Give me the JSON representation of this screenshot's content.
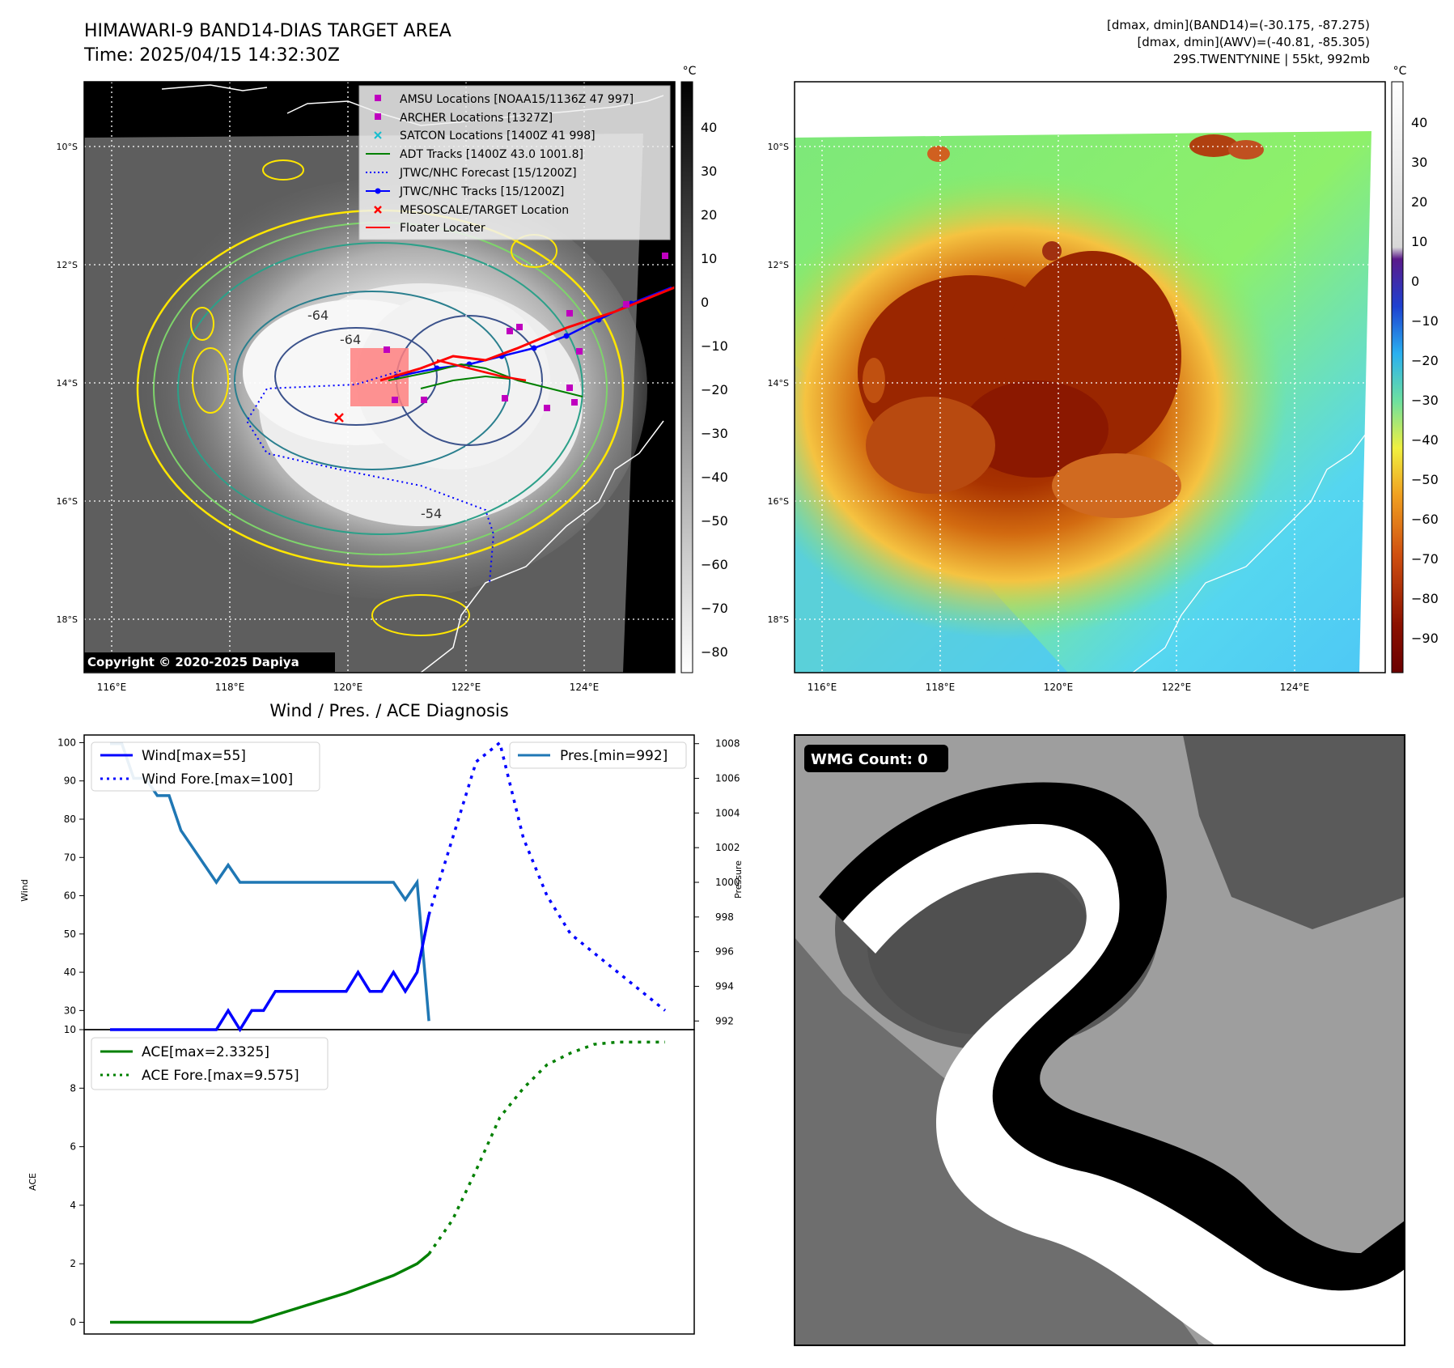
{
  "header": {
    "title": "HIMAWARI-9 BAND14-DIAS TARGET AREA",
    "time": "Time: 2025/04/15 14:32:30Z",
    "info_line1": "[dmax, dmin](BAND14)=(-30.175, -87.275)",
    "info_line2": "[dmax, dmin](AWV)=(-40.81, -85.305)",
    "info_line3": "29S.TWENTYNINE | 55kt, 992mb"
  },
  "map": {
    "lat_labels": [
      "10°S",
      "12°S",
      "14°S",
      "16°S",
      "18°S"
    ],
    "lon_labels": [
      "116°E",
      "118°E",
      "120°E",
      "122°E",
      "124°E"
    ],
    "copyright": "Copyright © 2020-2025 Dapiya",
    "colorbar_unit": "°C",
    "gray_ticks": [
      "40",
      "30",
      "20",
      "10",
      "0",
      "−10",
      "−20",
      "−30",
      "−40",
      "−50",
      "−60",
      "−70",
      "−80"
    ],
    "color_ticks": [
      "40",
      "30",
      "20",
      "10",
      "0",
      "−10",
      "−20",
      "−30",
      "−40",
      "−50",
      "−60",
      "−70",
      "−80",
      "−90"
    ],
    "legend": [
      {
        "label": "AMSU Locations [NOAA15/1136Z 47 997]",
        "marker": "square",
        "color": "#bf00bf"
      },
      {
        "label": "ARCHER Locations [1327Z]",
        "marker": "square",
        "color": "#bf00bf"
      },
      {
        "label": "SATCON Locations [1400Z 41 998]",
        "marker": "x",
        "color": "#17becf"
      },
      {
        "label": "ADT Tracks [1400Z 43.0 1001.8]",
        "marker": "line",
        "color": "#008000"
      },
      {
        "label": "JTWC/NHC Forecast [15/1200Z]",
        "marker": "dotted",
        "color": "#0000ff"
      },
      {
        "label": "JTWC/NHC Tracks [15/1200Z]",
        "marker": "line-dot",
        "color": "#0000ff"
      },
      {
        "label": "MESOSCALE/TARGET Location",
        "marker": "x",
        "color": "#ff0000"
      },
      {
        "label": "Floater Locater",
        "marker": "line",
        "color": "#ff0000"
      }
    ],
    "contour_labels": [
      "-64",
      "-64",
      "-54"
    ]
  },
  "diag": {
    "title": "Wind / Pres. / ACE Diagnosis",
    "wind_label": "Wind",
    "pres_label": "Pressure",
    "ace_label": "ACE",
    "wind_ticks": [
      "100",
      "90",
      "80",
      "70",
      "60",
      "50",
      "40",
      "30"
    ],
    "pres_ticks": [
      "1008",
      "1006",
      "1004",
      "1002",
      "1000",
      "998",
      "996",
      "994",
      "992"
    ],
    "ace_ticks": [
      "10",
      "8",
      "6",
      "4",
      "2",
      "0"
    ],
    "legend_wind": "Wind[max=55]",
    "legend_wind_fore": "Wind Fore.[max=100]",
    "legend_pres": "Pres.[min=992]",
    "legend_ace": "ACE[max=2.3325]",
    "legend_ace_fore": "ACE Fore.[max=9.575]"
  },
  "wmg": {
    "label": "WMG Count: 0"
  },
  "chart_data": [
    {
      "type": "line",
      "title": "Wind / Pres. / ACE Diagnosis",
      "ylabel": "Wind",
      "ylim": [
        25,
        102
      ],
      "x": [
        0,
        1,
        2,
        3,
        4,
        5,
        6,
        7,
        8,
        9,
        10,
        11,
        12,
        13,
        14,
        15,
        16,
        17,
        18,
        19,
        20,
        21,
        22,
        23,
        24,
        25,
        26,
        27,
        28,
        29,
        30,
        31,
        32,
        33,
        34,
        35,
        36,
        37,
        38,
        39,
        40,
        41,
        42,
        43,
        44,
        45,
        46,
        47
      ],
      "series": [
        {
          "name": "Wind[max=55]",
          "color": "#0000ff",
          "style": "solid",
          "x": [
            0,
            1,
            2,
            3,
            4,
            5,
            6,
            7,
            8,
            9,
            10,
            11,
            12,
            13,
            14,
            15,
            16,
            17,
            18,
            19,
            20,
            21,
            22,
            23,
            24,
            25,
            26,
            27
          ],
          "values": [
            25,
            25,
            25,
            25,
            25,
            25,
            25,
            25,
            25,
            25,
            30,
            25,
            30,
            30,
            35,
            35,
            35,
            35,
            35,
            35,
            35,
            40,
            35,
            35,
            40,
            35,
            40,
            55
          ]
        },
        {
          "name": "Wind Fore.[max=100]",
          "color": "#0000ff",
          "style": "dotted",
          "x": [
            27,
            29,
            31,
            33,
            35,
            37,
            39,
            41,
            43,
            45,
            47
          ],
          "values": [
            55,
            75,
            95,
            100,
            75,
            60,
            50,
            45,
            40,
            35,
            30
          ]
        }
      ]
    },
    {
      "type": "line",
      "ylabel": "Pressure",
      "ylim": [
        991.5,
        1008.5
      ],
      "series": [
        {
          "name": "Pres.[min=992]",
          "color": "#1f77b4",
          "style": "solid",
          "x": [
            0,
            1,
            2,
            3,
            4,
            5,
            6,
            7,
            8,
            9,
            10,
            11,
            12,
            13,
            14,
            15,
            16,
            17,
            18,
            19,
            20,
            21,
            22,
            23,
            24,
            25,
            26,
            27
          ],
          "values": [
            1008,
            1008,
            1006,
            1006,
            1005,
            1005,
            1003,
            1002,
            1001,
            1000,
            1001,
            1000,
            1000,
            1000,
            1000,
            1000,
            1000,
            1000,
            1000,
            1000,
            1000,
            1000,
            1000,
            1000,
            1000,
            999,
            1000,
            992
          ]
        }
      ]
    },
    {
      "type": "line",
      "ylabel": "ACE",
      "ylim": [
        -0.4,
        10
      ],
      "series": [
        {
          "name": "ACE[max=2.3325]",
          "color": "#008000",
          "style": "solid",
          "x": [
            0,
            2,
            4,
            6,
            8,
            10,
            12,
            14,
            16,
            18,
            20,
            22,
            24,
            26,
            27
          ],
          "values": [
            0,
            0,
            0,
            0,
            0,
            0,
            0,
            0.25,
            0.5,
            0.75,
            1.0,
            1.3,
            1.6,
            2.0,
            2.3325
          ]
        },
        {
          "name": "ACE Fore.[max=9.575]",
          "color": "#008000",
          "style": "dotted",
          "x": [
            27,
            29,
            31,
            33,
            35,
            37,
            39,
            41,
            43,
            45,
            47
          ],
          "values": [
            2.3325,
            3.5,
            5.2,
            7.0,
            8.0,
            8.8,
            9.2,
            9.5,
            9.575,
            9.575,
            9.575
          ]
        }
      ]
    }
  ]
}
